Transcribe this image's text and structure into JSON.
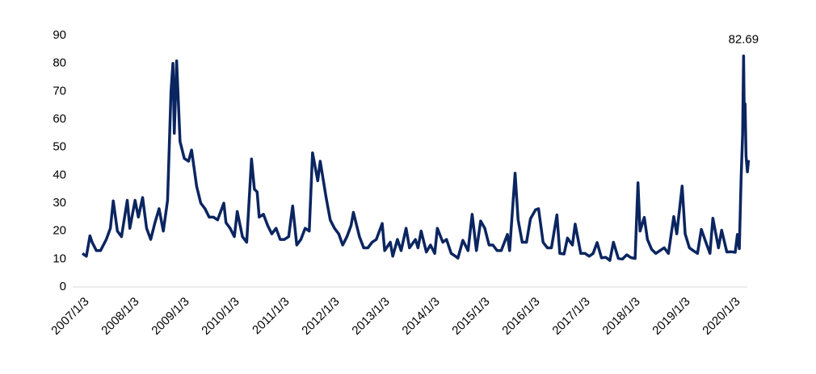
{
  "chart_data": {
    "type": "line",
    "color": "#0b2560",
    "x": [
      "2007/1/3",
      "2007/2/1",
      "2007/2/27",
      "2007/3/15",
      "2007/4/15",
      "2007/5/15",
      "2007/6/26",
      "2007/7/26",
      "2007/8/16",
      "2007/9/15",
      "2007/10/15",
      "2007/11/26",
      "2007/12/15",
      "2008/1/22",
      "2008/2/15",
      "2008/3/17",
      "2008/4/15",
      "2008/5/15",
      "2008/6/15",
      "2008/7/15",
      "2008/8/15",
      "2008/9/15",
      "2008/10/10",
      "2008/10/24",
      "2008/11/3",
      "2008/11/20",
      "2008/12/15",
      "2009/1/15",
      "2009/2/15",
      "2009/3/9",
      "2009/4/15",
      "2009/5/15",
      "2009/6/15",
      "2009/7/15",
      "2009/8/15",
      "2009/9/15",
      "2009/10/30",
      "2009/11/15",
      "2009/12/15",
      "2010/1/15",
      "2010/2/5",
      "2010/3/15",
      "2010/4/15",
      "2010/5/20",
      "2010/6/10",
      "2010/6/30",
      "2010/7/15",
      "2010/8/15",
      "2010/9/15",
      "2010/10/15",
      "2010/11/15",
      "2010/12/15",
      "2011/1/15",
      "2011/2/15",
      "2011/3/16",
      "2011/4/15",
      "2011/5/15",
      "2011/6/15",
      "2011/7/15",
      "2011/8/8",
      "2011/9/15",
      "2011/10/3",
      "2011/11/15",
      "2011/12/15",
      "2012/1/15",
      "2012/2/15",
      "2012/3/15",
      "2012/4/15",
      "2012/5/15",
      "2012/6/1",
      "2012/7/15",
      "2012/8/15",
      "2012/9/15",
      "2012/10/15",
      "2012/11/15",
      "2012/12/28",
      "2013/1/15",
      "2013/2/25",
      "2013/3/15",
      "2013/4/18",
      "2013/5/15",
      "2013/6/20",
      "2013/7/15",
      "2013/8/27",
      "2013/9/15",
      "2013/10/8",
      "2013/11/15",
      "2013/12/15",
      "2014/1/15",
      "2014/2/3",
      "2014/3/15",
      "2014/4/11",
      "2014/5/15",
      "2014/6/15",
      "2014/7/3",
      "2014/8/8",
      "2014/9/15",
      "2014/10/15",
      "2014/11/15",
      "2014/12/16",
      "2015/1/15",
      "2015/2/15",
      "2015/3/15",
      "2015/4/15",
      "2015/5/15",
      "2015/6/29",
      "2015/7/15",
      "2015/8/24",
      "2015/9/15",
      "2015/10/15",
      "2015/11/15",
      "2015/12/14",
      "2016/1/20",
      "2016/2/11",
      "2016/3/15",
      "2016/4/15",
      "2016/5/15",
      "2016/6/24",
      "2016/7/15",
      "2016/8/15",
      "2016/9/9",
      "2016/10/15",
      "2016/11/4",
      "2016/12/15",
      "2017/1/15",
      "2017/2/15",
      "2017/3/15",
      "2017/4/13",
      "2017/5/15",
      "2017/6/15",
      "2017/7/15",
      "2017/8/10",
      "2017/9/15",
      "2017/10/15",
      "2017/11/15",
      "2017/12/15",
      "2018/1/15",
      "2018/2/5",
      "2018/2/20",
      "2018/3/23",
      "2018/4/15",
      "2018/5/15",
      "2018/6/15",
      "2018/7/15",
      "2018/8/15",
      "2018/9/15",
      "2018/10/24",
      "2018/11/15",
      "2018/12/24",
      "2019/1/15",
      "2019/2/15",
      "2019/3/15",
      "2019/4/15",
      "2019/5/13",
      "2019/6/15",
      "2019/7/15",
      "2019/8/5",
      "2019/9/15",
      "2019/10/8",
      "2019/11/15",
      "2019/12/15",
      "2020/1/15",
      "2020/1/31",
      "2020/2/14",
      "2020/2/27",
      "2020/3/9",
      "2020/3/16",
      "2020/3/20",
      "2020/3/27",
      "2020/4/3",
      "2020/4/13",
      "2020/4/21"
    ],
    "values": [
      12,
      11,
      18.3,
      16,
      13,
      13,
      17,
      21,
      30.8,
      20,
      18,
      31,
      21,
      31,
      25,
      32,
      21,
      17,
      23,
      28,
      20,
      31,
      70,
      80,
      55,
      80.9,
      52,
      46,
      45,
      49,
      36,
      30,
      28,
      25,
      25,
      24,
      30,
      23,
      21,
      18,
      27,
      18,
      16,
      45.8,
      35,
      34,
      25,
      26,
      22,
      19,
      21,
      17,
      17,
      18,
      29,
      15,
      17,
      21,
      20,
      48,
      38,
      45,
      32,
      24,
      21,
      19,
      15,
      18,
      22,
      26.7,
      18,
      14,
      14,
      16,
      17,
      22.7,
      13,
      16,
      11,
      17,
      13,
      21,
      14,
      17,
      14,
      20,
      12.5,
      15,
      12,
      21,
      16,
      17,
      12,
      11,
      10.3,
      16.7,
      13,
      26,
      13,
      23.6,
      21,
      15,
      15,
      13,
      13,
      18.8,
      13,
      40.7,
      24,
      16,
      16,
      24.4,
      27.6,
      28,
      16,
      14,
      14,
      25.8,
      12,
      11.8,
      17.5,
      15,
      22.5,
      12,
      12,
      11,
      12,
      15.9,
      10.4,
      10.6,
      9.5,
      16,
      10.2,
      10,
      11.5,
      10.5,
      10.2,
      37.3,
      20,
      24.9,
      17,
      13.5,
      12,
      13,
      14,
      12,
      25.2,
      19,
      36.1,
      19,
      14,
      13,
      12,
      20.6,
      16,
      12,
      24.6,
      14,
      20.3,
      12.5,
      12.6,
      12.4,
      18.8,
      13.7,
      39,
      54.5,
      82.69,
      66,
      65.5,
      46.8,
      41.2,
      45.4
    ],
    "xlim": [
      "2007/1/3",
      "2020/4/30"
    ],
    "xticks": [
      "2007/1/3",
      "2008/1/3",
      "2009/1/3",
      "2010/1/3",
      "2011/1/3",
      "2012/1/3",
      "2013/1/3",
      "2014/1/3",
      "2015/1/3",
      "2016/1/3",
      "2017/1/3",
      "2018/1/3",
      "2019/1/3",
      "2020/1/3"
    ],
    "ylim": [
      0,
      90
    ],
    "yticks": [
      0,
      10,
      20,
      30,
      40,
      50,
      60,
      70,
      80,
      90
    ],
    "grid": false
  }
}
